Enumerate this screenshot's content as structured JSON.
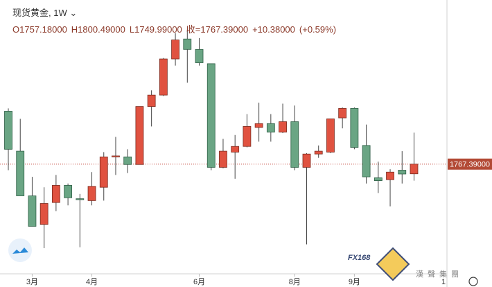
{
  "chart_data": {
    "type": "candlestick",
    "title": "现货黄金, 1W",
    "ohlc_header": [
      "O1757.18000",
      "H1800.49000",
      "L1749.99000",
      "收=1767.39000",
      "+10.38000",
      "(+0.59%)"
    ],
    "categories": [
      null,
      null,
      "3月",
      null,
      null,
      null,
      null,
      "4月",
      null,
      null,
      null,
      null,
      null,
      null,
      null,
      null,
      "6月",
      null,
      null,
      null,
      null,
      null,
      null,
      null,
      "8月",
      null,
      null,
      null,
      null,
      "9月",
      null,
      null,
      null,
      null,
      null
    ],
    "x_edge_label": "1",
    "open": [
      1823,
      1781,
      1734,
      1704,
      1727,
      1745,
      1731,
      1729,
      1743,
      1775,
      1775,
      1767,
      1828,
      1840,
      1878,
      1899,
      1888,
      1873,
      1764,
      1780,
      1786,
      1806,
      1810,
      1801,
      1812,
      1764,
      1778,
      1780,
      1816,
      1826,
      1787,
      1753,
      1751,
      1761,
      1757.18
    ],
    "high": [
      1826,
      1815,
      1754,
      1743,
      1756,
      1747,
      1736,
      1759,
      1780,
      1796,
      1783,
      1828,
      1845,
      1879,
      1905,
      1909,
      1900,
      1873,
      1794,
      1798,
      1820,
      1832,
      1820,
      1831,
      1829,
      1779,
      1787,
      1815,
      1827,
      1827,
      1809,
      1770,
      1762,
      1781,
      1800.49
    ],
    "low": [
      1761,
      1734,
      1702,
      1679,
      1718,
      1724,
      1680,
      1724,
      1729,
      1756,
      1758,
      1767,
      1807,
      1839,
      1871,
      1853,
      1871,
      1761,
      1763,
      1752,
      1785,
      1791,
      1791,
      1800,
      1761,
      1683,
      1774,
      1779,
      1805,
      1783,
      1747,
      1737,
      1723,
      1747,
      1749.99
    ],
    "close": [
      1783,
      1734,
      1702,
      1726,
      1745,
      1732,
      1730,
      1744,
      1775,
      1776,
      1767,
      1828,
      1840,
      1878,
      1898,
      1888,
      1874,
      1764,
      1781,
      1786,
      1807,
      1810,
      1801,
      1812,
      1764,
      1778,
      1781,
      1815,
      1826,
      1785,
      1754,
      1750,
      1759,
      1757,
      1767.39
    ],
    "up_color": "#e05240",
    "down_color": "#6aa584",
    "ylim": [
      1652,
      1940
    ],
    "last_price": {
      "value": 1767.39,
      "label": "1767.39000"
    },
    "watermark": {
      "brand": "FX168",
      "sub": "漢聲集團"
    }
  }
}
